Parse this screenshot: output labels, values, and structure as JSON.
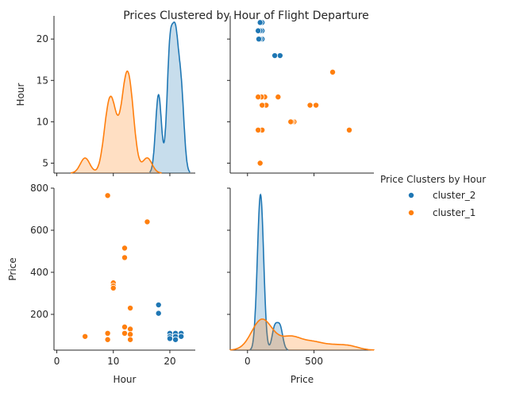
{
  "chart_data": {
    "type": "pairplot",
    "title": "Prices Clustered by Hour of Flight Departure",
    "variables": [
      "Hour",
      "Price"
    ],
    "legend": {
      "title": "Price Clusters by Hour",
      "placement": "right",
      "entries": [
        {
          "name": "cluster_2",
          "color": "#1f77b4"
        },
        {
          "name": "cluster_1",
          "color": "#ff7f0e"
        }
      ]
    },
    "axes": {
      "Hour": {
        "range": [
          -0.5,
          24.5
        ],
        "ticks": [
          0,
          10,
          20
        ],
        "diag_ticks": [
          5,
          10,
          15,
          20
        ],
        "diag_range": [
          3.8,
          22.8
        ]
      },
      "Price": {
        "range": [
          30,
          800
        ],
        "ticks": [
          200,
          400,
          600,
          800
        ],
        "diag_ticks": [
          0,
          500
        ],
        "diag_range": [
          -130,
          950
        ]
      }
    },
    "series": [
      {
        "name": "cluster_2",
        "color": "#1f77b4",
        "points": [
          {
            "hour": 18,
            "price": 245
          },
          {
            "hour": 18,
            "price": 205
          },
          {
            "hour": 20,
            "price": 110
          },
          {
            "hour": 20,
            "price": 95
          },
          {
            "hour": 20,
            "price": 85
          },
          {
            "hour": 21,
            "price": 110
          },
          {
            "hour": 21,
            "price": 95
          },
          {
            "hour": 21,
            "price": 80
          },
          {
            "hour": 22,
            "price": 110
          },
          {
            "hour": 22,
            "price": 95
          }
        ]
      },
      {
        "name": "cluster_1",
        "color": "#ff7f0e",
        "points": [
          {
            "hour": 5,
            "price": 95
          },
          {
            "hour": 9,
            "price": 765
          },
          {
            "hour": 9,
            "price": 110
          },
          {
            "hour": 9,
            "price": 80
          },
          {
            "hour": 10,
            "price": 350
          },
          {
            "hour": 10,
            "price": 335
          },
          {
            "hour": 10,
            "price": 325
          },
          {
            "hour": 12,
            "price": 515
          },
          {
            "hour": 12,
            "price": 470
          },
          {
            "hour": 12,
            "price": 140
          },
          {
            "hour": 12,
            "price": 110
          },
          {
            "hour": 13,
            "price": 230
          },
          {
            "hour": 13,
            "price": 130
          },
          {
            "hour": 13,
            "price": 105
          },
          {
            "hour": 13,
            "price": 80
          },
          {
            "hour": 16,
            "price": 640
          }
        ]
      }
    ]
  }
}
